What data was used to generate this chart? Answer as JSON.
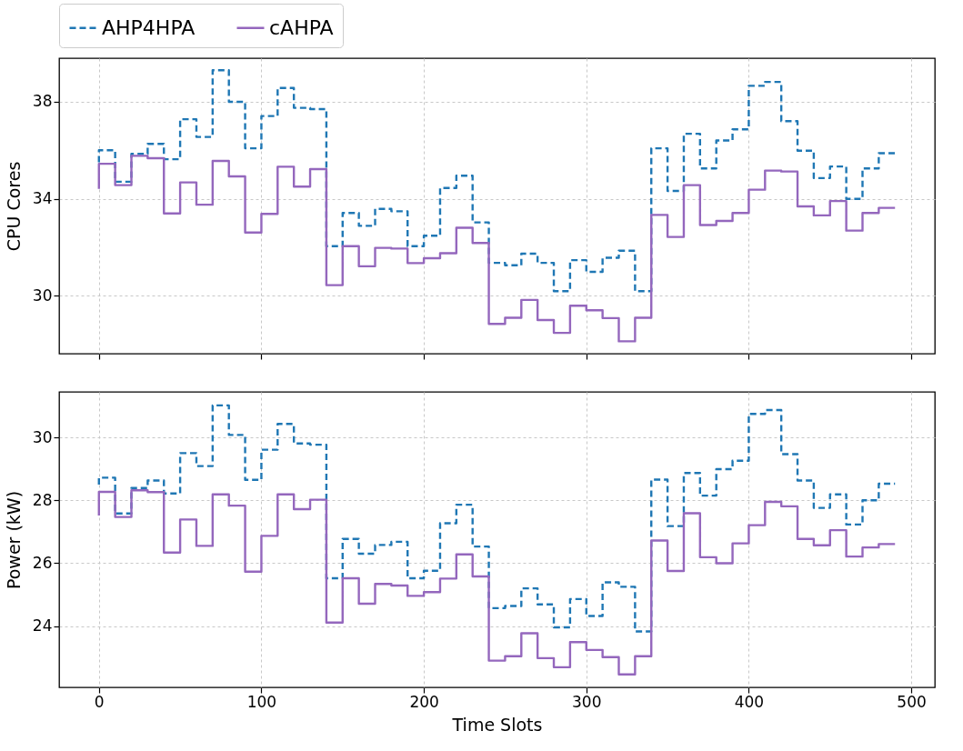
{
  "chart_data": [
    {
      "type": "step",
      "ylabel": "CPU Cores",
      "x": [
        0,
        10,
        20,
        30,
        40,
        50,
        60,
        70,
        80,
        90,
        100,
        110,
        120,
        130,
        140,
        150,
        160,
        170,
        180,
        190,
        200,
        210,
        220,
        230,
        240,
        250,
        260,
        270,
        280,
        290,
        300,
        310,
        320,
        330,
        340,
        350,
        360,
        370,
        380,
        390,
        400,
        410,
        420,
        430,
        440,
        450,
        460,
        470,
        480,
        490
      ],
      "xlim": [
        -24.5,
        514.5
      ],
      "xticks": [
        0,
        100,
        200,
        300,
        400,
        500
      ],
      "ylim": [
        27.6,
        39.8
      ],
      "yticks": [
        30,
        34,
        38
      ],
      "tick_labels": "y",
      "grid": true,
      "legend": "top left",
      "series": [
        {
          "name": "AHP4HPA",
          "color": "#1f77b4",
          "line_style": "dashed",
          "values": [
            35.5,
            36.0,
            34.7,
            35.85,
            36.26,
            35.63,
            37.28,
            36.55,
            39.3,
            38.0,
            36.08,
            37.41,
            38.57,
            37.75,
            37.7,
            32.04,
            33.41,
            32.88,
            33.58,
            33.48,
            32.04,
            32.47,
            34.44,
            34.95,
            33.02,
            31.35,
            31.25,
            31.73,
            31.35,
            30.18,
            31.46,
            30.98,
            31.56,
            31.85,
            30.18,
            36.08,
            34.32,
            36.68,
            35.25,
            36.4,
            36.86,
            38.66,
            38.82,
            37.2,
            35.98,
            34.85,
            35.33,
            33.99,
            35.25,
            35.88
          ]
        },
        {
          "name": "cAHPA",
          "color": "#9467bd",
          "line_style": "solid",
          "values": [
            34.4,
            35.44,
            34.56,
            35.77,
            35.67,
            33.39,
            34.67,
            33.75,
            35.56,
            34.92,
            32.6,
            33.37,
            35.32,
            34.5,
            35.22,
            30.43,
            32.04,
            31.21,
            31.97,
            31.94,
            31.34,
            31.54,
            31.75,
            32.8,
            32.17,
            28.83,
            29.08,
            29.82,
            28.99,
            28.46,
            29.58,
            29.39,
            29.07,
            28.11,
            29.08,
            33.33,
            32.42,
            34.56,
            32.91,
            33.08,
            33.41,
            34.37,
            35.16,
            35.12,
            33.68,
            33.31,
            33.9,
            32.68,
            33.41,
            33.62
          ]
        }
      ]
    },
    {
      "type": "step",
      "xlabel": "Time Slots",
      "ylabel": "Power (kW)",
      "x": [
        0,
        10,
        20,
        30,
        40,
        50,
        60,
        70,
        80,
        90,
        100,
        110,
        120,
        130,
        140,
        150,
        160,
        170,
        180,
        190,
        200,
        210,
        220,
        230,
        240,
        250,
        260,
        270,
        280,
        290,
        300,
        310,
        320,
        330,
        340,
        350,
        360,
        370,
        380,
        390,
        400,
        410,
        420,
        430,
        440,
        450,
        460,
        470,
        480,
        490
      ],
      "xlim": [
        -24.5,
        514.5
      ],
      "xticks": [
        0,
        100,
        200,
        300,
        400,
        500
      ],
      "ylim": [
        22.05,
        31.45
      ],
      "yticks": [
        24,
        26,
        28,
        30
      ],
      "grid": true,
      "series": [
        {
          "color": "#1f77b4",
          "line_style": "dashed",
          "values": [
            28.5,
            28.72,
            27.58,
            28.39,
            28.63,
            28.22,
            29.5,
            29.09,
            31.02,
            30.08,
            28.65,
            29.61,
            30.43,
            29.81,
            29.77,
            25.52,
            26.77,
            26.3,
            26.58,
            26.68,
            25.52,
            25.76,
            27.27,
            27.86,
            26.53,
            24.57,
            24.64,
            25.2,
            24.69,
            23.96,
            24.86,
            24.32,
            25.39,
            25.25,
            23.83,
            28.66,
            27.18,
            28.87,
            28.15,
            28.99,
            29.26,
            30.75,
            30.87,
            29.47,
            28.63,
            27.76,
            28.19,
            27.23,
            28.0,
            28.53
          ]
        },
        {
          "color": "#9467bd",
          "line_style": "solid",
          "values": [
            27.52,
            28.27,
            27.47,
            28.32,
            28.26,
            26.34,
            27.39,
            26.55,
            28.19,
            27.83,
            25.73,
            26.87,
            28.19,
            27.72,
            28.02,
            24.11,
            25.52,
            24.71,
            25.34,
            25.29,
            24.96,
            25.08,
            25.51,
            26.28,
            25.58,
            22.9,
            23.04,
            23.77,
            22.98,
            22.69,
            23.49,
            23.24,
            23.01,
            22.46,
            23.04,
            26.72,
            25.75,
            27.59,
            26.19,
            26.0,
            26.63,
            27.21,
            27.95,
            27.81,
            26.77,
            26.57,
            27.05,
            26.21,
            26.5,
            26.61
          ]
        }
      ]
    }
  ]
}
